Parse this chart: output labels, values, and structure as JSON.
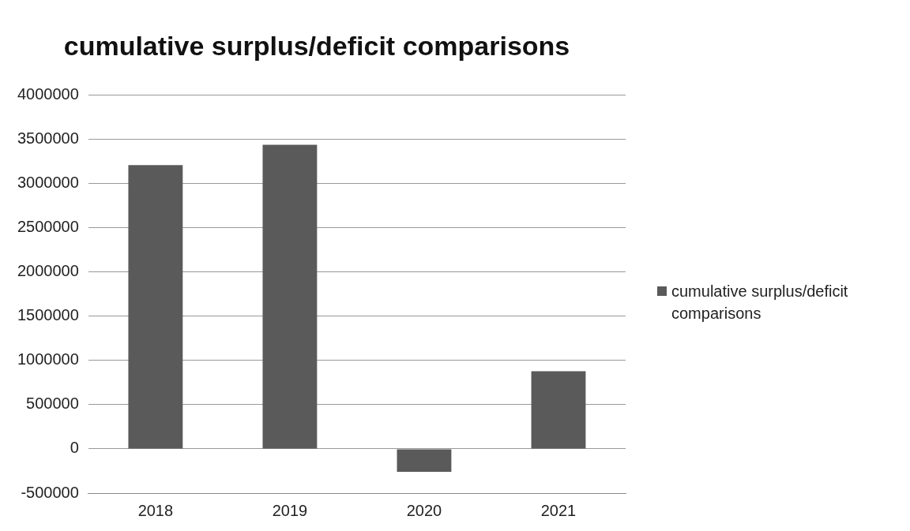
{
  "chart_data": {
    "type": "bar",
    "title": "cumulative surplus/deficit comparisons",
    "categories": [
      "2018",
      "2019",
      "2020",
      "2021"
    ],
    "series": [
      {
        "name": "cumulative surplus/deficit comparisons",
        "color": "#5a5a5a",
        "values": [
          3210000,
          3440000,
          -260000,
          880000
        ]
      }
    ],
    "ylim": [
      -500000,
      4000000
    ],
    "yticks": [
      -500000,
      0,
      500000,
      1000000,
      1500000,
      2000000,
      2500000,
      3000000,
      3500000,
      4000000
    ],
    "grid": "y",
    "legend": "right"
  }
}
